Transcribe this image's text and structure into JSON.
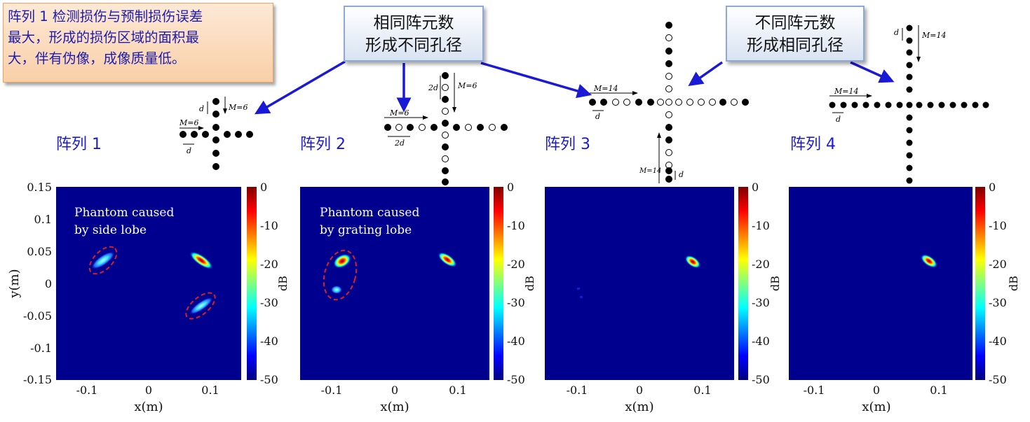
{
  "note": {
    "lines": [
      "阵列 1 检测损伤与预制损伤误差",
      "最大，形成的损伤区域的面积最",
      "大，伴有伪像，成像质量低。"
    ]
  },
  "callout_same": {
    "lines": [
      "相同阵元数",
      "形成不同孔径"
    ]
  },
  "callout_diff": {
    "lines": [
      "不同阵元数",
      "形成相同孔径"
    ]
  },
  "array_labels": [
    "阵列 1",
    "阵列 2",
    "阵列 3",
    "阵列 4"
  ],
  "array_annotations": {
    "a1": {
      "m": "M=6",
      "m2": "M=6",
      "d1": "d",
      "d2": "d"
    },
    "a2": {
      "m": "M=6",
      "m2": "M=6",
      "d1": "2d",
      "d2": "2d"
    },
    "a3": {
      "m": "M=14",
      "m2": "M=14",
      "d": "d"
    },
    "a4": {
      "m": "M=14",
      "m2": "M=14",
      "d1": "d",
      "d2": "d"
    }
  },
  "colorbar": {
    "ticks": [
      "0",
      "-10",
      "-20",
      "-30",
      "-40",
      "-50"
    ],
    "label": "dB"
  },
  "panels": [
    {
      "annotation": [
        "Phantom caused",
        "by side lobe"
      ],
      "xlabel": "x(m)",
      "ylabel": "y(m)",
      "xticks": [
        "-0.1",
        "0",
        "0.1"
      ],
      "yticks": [
        "0.15",
        "0.1",
        "0.05",
        "0",
        "-0.05",
        "-0.1",
        "-0.15"
      ]
    },
    {
      "annotation": [
        "Phantom caused",
        "by grating lobe"
      ],
      "xlabel": "x(m)",
      "ylabel": "",
      "xticks": [
        "-0.1",
        "0",
        "0.1"
      ],
      "yticks": []
    },
    {
      "annotation": [],
      "xlabel": "x(m)",
      "ylabel": "",
      "xticks": [
        "-0.1",
        "0",
        "0.1"
      ],
      "yticks": []
    },
    {
      "annotation": [],
      "xlabel": "x(m)",
      "ylabel": "",
      "xticks": [
        "-0.1",
        "0",
        "0.1"
      ],
      "yticks": []
    }
  ],
  "chart_data": [
    {
      "type": "heatmap",
      "xlim": [
        -0.15,
        0.15
      ],
      "ylim": [
        -0.15,
        0.15
      ],
      "clim": [
        -50,
        0
      ],
      "spots": [
        {
          "x": 0.088,
          "y": 0.03,
          "label": "damage"
        },
        {
          "x": -0.072,
          "y": 0.03,
          "label": "side lobe phantom"
        },
        {
          "x": 0.085,
          "y": -0.035,
          "label": "side lobe phantom"
        }
      ]
    },
    {
      "type": "heatmap",
      "xlim": [
        -0.15,
        0.15
      ],
      "ylim": [
        -0.15,
        0.15
      ],
      "clim": [
        -50,
        0
      ],
      "spots": [
        {
          "x": 0.085,
          "y": 0.03,
          "label": "damage"
        },
        {
          "x": -0.085,
          "y": 0.03,
          "label": "grating lobe phantom"
        },
        {
          "x": -0.095,
          "y": -0.01,
          "label": "grating lobe phantom"
        }
      ]
    },
    {
      "type": "heatmap",
      "xlim": [
        -0.15,
        0.15
      ],
      "ylim": [
        -0.15,
        0.15
      ],
      "clim": [
        -50,
        0
      ],
      "spots": [
        {
          "x": 0.087,
          "y": 0.03,
          "label": "damage"
        }
      ]
    },
    {
      "type": "heatmap",
      "xlim": [
        -0.15,
        0.15
      ],
      "ylim": [
        -0.15,
        0.15
      ],
      "clim": [
        -50,
        0
      ],
      "spots": [
        {
          "x": 0.087,
          "y": 0.03,
          "label": "damage"
        }
      ]
    }
  ]
}
